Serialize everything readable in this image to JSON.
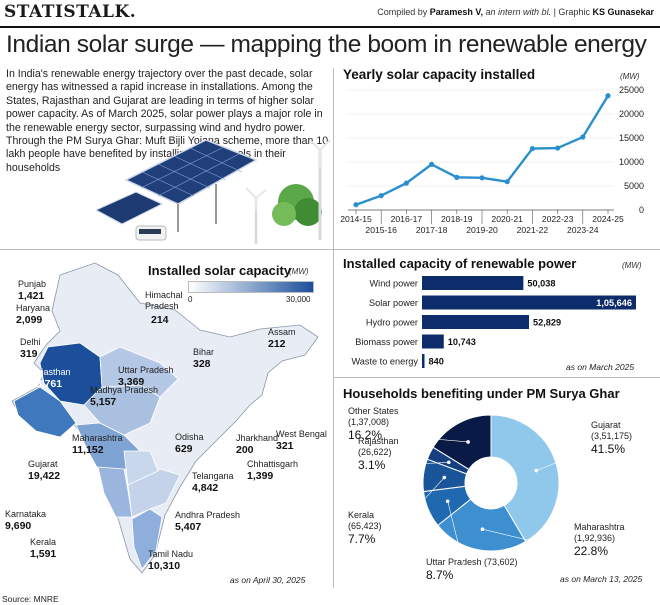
{
  "header": {
    "brand": "STATISTALK.",
    "compiled_prefix": "Compiled by",
    "compiler": "Paramesh V,",
    "compiler_role": "an intern with bl.",
    "graphic_prefix": "| Graphic",
    "graphic_artist": "KS Gunasekar"
  },
  "headline": "Indian solar surge — mapping the boom in renewable energy",
  "intro": "In India's renewable energy trajectory over the past decade, solar energy has witnessed a rapid increase in installations. Among the States, Rajasthan and Gujarat are leading in terms of higher solar power capacity. As of March 2025, solar power plays a major role in the renewable energy sector, surpassing wind and hydro power. Through the PM Surya Ghar: Muft Bijli Yojana scheme, more than 10 lakh people have benefited by installing solar panels in their households",
  "source": "Source: MNRE",
  "colors": {
    "accent": "#2a8fce",
    "bar_dark": "#0d2c6b",
    "map_dark": "#1b4f9c",
    "map_light": "#e8edf5"
  },
  "chart_data": [
    {
      "type": "line",
      "title": "Yearly solar capacity installed",
      "unit": "(MW)",
      "x": [
        "2014-15",
        "2015-16",
        "2016-17",
        "2017-18",
        "2018-19",
        "2019-20",
        "2020-21",
        "2021-22",
        "2022-23",
        "2023-24",
        "2024-25"
      ],
      "values": [
        1100,
        3000,
        5600,
        9500,
        6800,
        6700,
        5900,
        12800,
        12900,
        15200,
        23800
      ],
      "ylim": [
        0,
        25000
      ],
      "yticks": [
        "0",
        "5000",
        "10000",
        "15000",
        "20000",
        "25000"
      ],
      "color": "#2a8fce"
    },
    {
      "type": "bar",
      "title": "Installed capacity of renewable power",
      "unit": "(MW)",
      "categories": [
        "Wind power",
        "Solar power",
        "Hydro power",
        "Biomass power",
        "Waste to energy"
      ],
      "values": [
        50038,
        105646,
        52829,
        10743,
        840
      ],
      "labels": [
        "50,038",
        "1,05,646",
        "52,829",
        "10,743",
        "840"
      ],
      "note": "as on March 2025",
      "color": "#0d2c6b"
    },
    {
      "type": "pie",
      "title": "Households benefiting under PM Surya Ghar",
      "slices": [
        {
          "name": "Gujarat",
          "count": "(3,51,175)",
          "percent": "41.5",
          "value": 41.5,
          "color": "#8fc8ea"
        },
        {
          "name": "Maharashtra",
          "count": "(1,92,936)",
          "percent": "22.8",
          "value": 22.8,
          "color": "#3d8fd0"
        },
        {
          "name": "Uttar Pradesh (73,602)",
          "count": "",
          "percent": "8.7",
          "value": 8.7,
          "color": "#2069b1"
        },
        {
          "name": "Kerala",
          "count": "(65,423)",
          "percent": "7.7",
          "value": 7.7,
          "color": "#1a559a"
        },
        {
          "name": "Rajasthan",
          "count": "(26,622)",
          "percent": "3.1",
          "value": 3.1,
          "color": "#153f7f"
        },
        {
          "name": "Other States",
          "count": "(1,37,008)",
          "percent": "16.2",
          "value": 16.2,
          "color": "#081a45"
        }
      ],
      "note": "as on March 13, 2025"
    },
    {
      "type": "heatmap",
      "title": "Installed solar capacity",
      "unit": "(MW)",
      "scale_min": "0",
      "scale_max": "30,000",
      "note": "as on April 30, 2025",
      "states": [
        {
          "name": "Punjab",
          "value": "1,421"
        },
        {
          "name": "Haryana",
          "value": "2,099"
        },
        {
          "name": "Delhi",
          "value": "319"
        },
        {
          "name": "Himachal Pradesh",
          "value": "214"
        },
        {
          "name": "Assam",
          "value": "212"
        },
        {
          "name": "Rajasthan",
          "value": "28,761"
        },
        {
          "name": "Uttar Pradesh",
          "value": "3,369"
        },
        {
          "name": "Bihar",
          "value": "328"
        },
        {
          "name": "Madhya Pradesh",
          "value": "5,157"
        },
        {
          "name": "Gujarat",
          "value": "19,422"
        },
        {
          "name": "Maharashtra",
          "value": "11,152"
        },
        {
          "name": "Odisha",
          "value": "629"
        },
        {
          "name": "Jharkhand",
          "value": "200"
        },
        {
          "name": "West Bengal",
          "value": "321"
        },
        {
          "name": "Chhattisgarh",
          "value": "1,399"
        },
        {
          "name": "Telangana",
          "value": "4,842"
        },
        {
          "name": "Karnataka",
          "value": "9,690"
        },
        {
          "name": "Andhra Pradesh",
          "value": "5,407"
        },
        {
          "name": "Kerala",
          "value": "1,591"
        },
        {
          "name": "Tamil Nadu",
          "value": "10,310"
        }
      ]
    }
  ]
}
